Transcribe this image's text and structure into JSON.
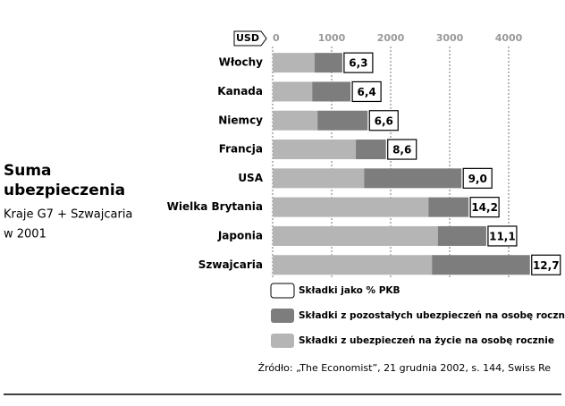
{
  "chart_data": {
    "type": "stacked-bar-horizontal",
    "title": [
      "Suma",
      "ubezpieczenia"
    ],
    "subtitle": [
      "Kraje G7 + Szwajcaria",
      "w 2001"
    ],
    "x_axis_label": "USD",
    "categories": [
      "Włochy",
      "Kanada",
      "Niemcy",
      "Francja",
      "USA",
      "Wielka Brytania",
      "Japonia",
      "Szwajcaria"
    ],
    "series": [
      {
        "name": "Składki z ubezpieczeń na życie na osobę rocznie",
        "color": "#b5b5b5",
        "values": [
          710,
          670,
          760,
          1410,
          1550,
          2640,
          2800,
          2700
        ]
      },
      {
        "name": "Składki z pozostałych ubezpieczeń na osobę rocznie",
        "color": "#7d7d7d",
        "values": [
          470,
          650,
          850,
          510,
          1650,
          680,
          820,
          1660
        ]
      }
    ],
    "pkb": {
      "name": "Składki jako % PKB",
      "color": "#ffffff",
      "values": [
        6.3,
        6.4,
        6.6,
        8.6,
        9.0,
        14.2,
        11.1,
        12.7
      ],
      "value_labels": [
        "6,3",
        "6,4",
        "6,6",
        "8,6",
        "9,0",
        "14,2",
        "11,1",
        "12,7"
      ]
    },
    "xlim": [
      0,
      4600
    ],
    "xticks": [
      0,
      1000,
      2000,
      3000,
      4000
    ],
    "grid": true,
    "source": "Źródło: „The Economist”, 21 grudnia 2002, s. 144, Swiss Re"
  }
}
